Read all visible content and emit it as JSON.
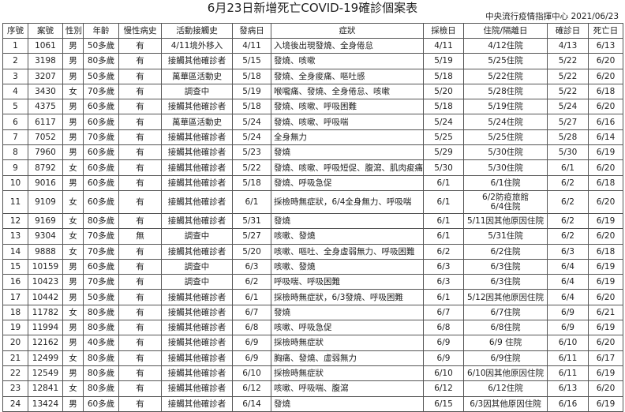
{
  "title": "6月23日新增死亡COVID-19確診個案表",
  "source": "中央流行疫情指揮中心 2021/06/23",
  "columns": [
    "序號",
    "案號",
    "性別",
    "年齡",
    "慢性病史",
    "活動接觸史",
    "發病日",
    "症狀",
    "採檢日",
    "住院/隔離日",
    "確診日",
    "死亡日"
  ],
  "rows": [
    [
      "1",
      "1061",
      "男",
      "50多歲",
      "有",
      "4/11境外移入",
      "4/11",
      "入境後出現發燒、全身倦怠",
      "4/11",
      "4/12住院",
      "4/13",
      "6/13"
    ],
    [
      "2",
      "3198",
      "男",
      "80多歲",
      "有",
      "接觸其他確診者",
      "5/15",
      "發燒、咳嗽",
      "5/19",
      "5/25住院",
      "5/22",
      "6/20"
    ],
    [
      "3",
      "3207",
      "男",
      "50多歲",
      "有",
      "萬華區活動史",
      "5/18",
      "發燒、全身痠痛、嘔吐感",
      "5/18",
      "5/22住院",
      "5/22",
      "6/20"
    ],
    [
      "4",
      "3430",
      "女",
      "70多歲",
      "有",
      "調查中",
      "5/19",
      "喉嚨痛、發燒、全身倦怠、咳嗽",
      "5/20",
      "5/28住院",
      "5/22",
      "6/18"
    ],
    [
      "5",
      "4375",
      "男",
      "60多歲",
      "有",
      "接觸其他確診者",
      "5/18",
      "發燒、咳嗽、呼吸困難",
      "5/18",
      "5/19住院",
      "5/24",
      "6/20"
    ],
    [
      "6",
      "6117",
      "男",
      "60多歲",
      "有",
      "萬華區活動史",
      "5/24",
      "發燒、咳嗽、呼吸喘",
      "5/24",
      "5/24住院",
      "5/27",
      "6/16"
    ],
    [
      "7",
      "7052",
      "男",
      "70多歲",
      "有",
      "接觸其他確診者",
      "5/24",
      "全身無力",
      "5/25",
      "5/25住院",
      "5/28",
      "6/14"
    ],
    [
      "8",
      "7960",
      "男",
      "60多歲",
      "有",
      "接觸其他確診者",
      "5/23",
      "發燒",
      "5/29",
      "5/30住院",
      "5/30",
      "6/19"
    ],
    [
      "9",
      "8792",
      "女",
      "60多歲",
      "有",
      "接觸其他確診者",
      "5/22",
      "發燒、咳嗽、呼吸短促、腹瀉、肌肉痠痛",
      "5/30",
      "5/30住院",
      "6/1",
      "6/20"
    ],
    [
      "10",
      "9016",
      "男",
      "60多歲",
      "有",
      "接觸其他確診者",
      "5/18",
      "發燒、呼吸急促",
      "6/1",
      "6/1住院",
      "6/2",
      "6/18"
    ],
    [
      "11",
      "9109",
      "女",
      "60多歲",
      "有",
      "接觸其他確診者",
      "6/1",
      "採檢時無症狀，6/4全身無力、呼吸喘",
      "6/1",
      "6/2防疫旅館\n6/4住院",
      "6/2",
      "6/20"
    ],
    [
      "12",
      "9169",
      "女",
      "80多歲",
      "有",
      "接觸其他確診者",
      "5/31",
      "發燒",
      "6/1",
      "5/11因其他原因住院",
      "6/2",
      "6/19"
    ],
    [
      "13",
      "9304",
      "女",
      "70多歲",
      "無",
      "調查中",
      "5/27",
      "咳嗽、發燒",
      "6/1",
      "5/31住院",
      "6/2",
      "6/20"
    ],
    [
      "14",
      "9888",
      "女",
      "70多歲",
      "有",
      "接觸其他確診者",
      "5/20",
      "咳嗽、嘔吐、全身虛弱無力、呼吸困難",
      "6/2",
      "6/2住院",
      "6/3",
      "6/18"
    ],
    [
      "15",
      "10159",
      "男",
      "60多歲",
      "有",
      "調查中",
      "6/3",
      "咳嗽、發燒",
      "6/3",
      "6/3住院",
      "6/4",
      "6/19"
    ],
    [
      "16",
      "10423",
      "男",
      "70多歲",
      "有",
      "調查中",
      "6/2",
      "呼吸喘、呼吸困難",
      "6/3",
      "6/3住院",
      "6/4",
      "6/19"
    ],
    [
      "17",
      "10442",
      "男",
      "50多歲",
      "有",
      "接觸其他確診者",
      "6/1",
      "採檢時無症狀，6/3發燒、呼吸困難",
      "6/1",
      "5/12因其他原因住院",
      "6/4",
      "6/20"
    ],
    [
      "18",
      "11782",
      "女",
      "80多歲",
      "有",
      "接觸其他確診者",
      "6/7",
      "發燒",
      "6/7",
      "6/7住院",
      "6/9",
      "6/21"
    ],
    [
      "19",
      "11994",
      "男",
      "80多歲",
      "有",
      "接觸其他確診者",
      "6/8",
      "咳嗽、呼吸急促",
      "6/8",
      "6/8住院",
      "6/9",
      "6/19"
    ],
    [
      "20",
      "12162",
      "男",
      "40多歲",
      "有",
      "接觸其他確診者",
      "6/9",
      "採檢時無症狀",
      "6/9",
      "6/9 住院",
      "6/10",
      "6/20"
    ],
    [
      "21",
      "12499",
      "女",
      "80多歲",
      "有",
      "接觸其他確診者",
      "6/9",
      "胸痛、發燒、虛弱無力",
      "6/9",
      "6/9住院",
      "6/11",
      "6/17"
    ],
    [
      "22",
      "12549",
      "男",
      "80多歲",
      "有",
      "接觸其他確診者",
      "6/10",
      "採檢時無症狀",
      "6/10",
      "6/10因其他原因住院",
      "6/11",
      "6/19"
    ],
    [
      "23",
      "12841",
      "女",
      "80多歲",
      "有",
      "接觸其他確診者",
      "6/12",
      "咳嗽、呼吸喘、腹瀉",
      "6/12",
      "6/12住院",
      "6/13",
      "6/20"
    ],
    [
      "24",
      "13424",
      "男",
      "60多歲",
      "有",
      "接觸其他確診者",
      "6/14",
      "發燒",
      "6/15",
      "6/3因其他原因住院",
      "6/16",
      "6/19"
    ]
  ]
}
